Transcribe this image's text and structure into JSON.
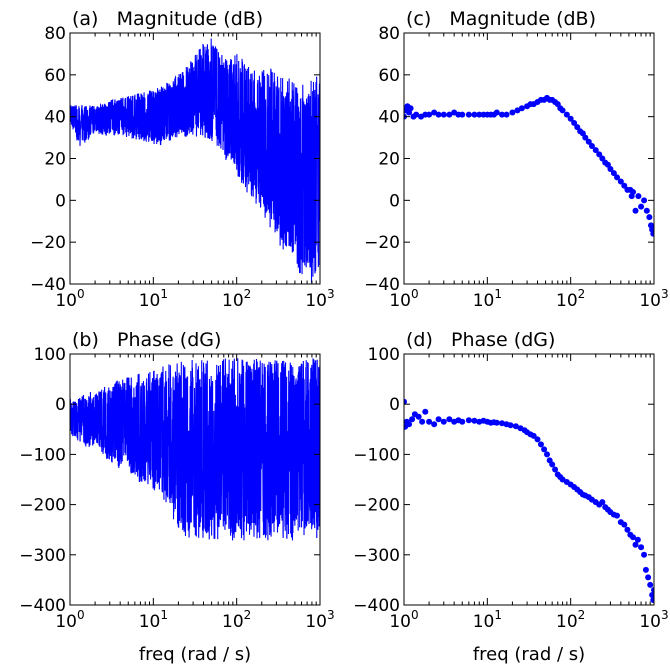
{
  "chart_data": [
    {
      "id": "a",
      "type": "line",
      "title": "(a)   Magnitude (dB)",
      "xlabel": "",
      "x_scale": "log",
      "xlim": [
        1,
        1000
      ],
      "ylim": [
        -40,
        80
      ],
      "yticks": [
        -40,
        -20,
        0,
        20,
        40,
        60,
        80
      ],
      "xticks": [
        {
          "base": "10",
          "exp": "0"
        },
        {
          "base": "10",
          "exp": "1"
        },
        {
          "base": "10",
          "exp": "2"
        },
        {
          "base": "10",
          "exp": "3"
        }
      ],
      "series_color": "#0000ff",
      "style": "dense noisy line",
      "envelope": {
        "x": [
          1,
          1.3,
          2,
          3,
          5,
          8,
          12,
          20,
          30,
          40,
          50,
          70,
          100,
          150,
          200,
          300,
          500,
          700,
          1000
        ],
        "upper": [
          46,
          46,
          45,
          48,
          50,
          52,
          54,
          60,
          68,
          76,
          78,
          68,
          70,
          64,
          65,
          62,
          58,
          55,
          62
        ],
        "lower": [
          38,
          25,
          32,
          30,
          30,
          28,
          26,
          30,
          30,
          30,
          28,
          20,
          12,
          0,
          -5,
          -20,
          -32,
          -40,
          -40
        ]
      }
    },
    {
      "id": "b",
      "type": "line",
      "title": "(b)   Phase (dG)",
      "xlabel": "freq (rad / s)",
      "x_scale": "log",
      "xlim": [
        1,
        1000
      ],
      "ylim": [
        -400,
        100
      ],
      "yticks": [
        -400,
        -300,
        -200,
        -100,
        0,
        100
      ],
      "xticks": [
        {
          "base": "10",
          "exp": "0"
        },
        {
          "base": "10",
          "exp": "1"
        },
        {
          "base": "10",
          "exp": "2"
        },
        {
          "base": "10",
          "exp": "3"
        }
      ],
      "series_color": "#0000ff",
      "style": "dense noisy line",
      "envelope": {
        "x": [
          1,
          1.5,
          2,
          3,
          4,
          6,
          10,
          15,
          20,
          30,
          50,
          60,
          80,
          100,
          200,
          500,
          1000
        ],
        "upper": [
          10,
          20,
          30,
          40,
          50,
          60,
          70,
          80,
          85,
          90,
          92,
          92,
          92,
          92,
          92,
          92,
          92
        ],
        "lower": [
          -60,
          -90,
          -80,
          -120,
          -130,
          -150,
          -170,
          -200,
          -260,
          -270,
          -270,
          -272,
          -272,
          -272,
          -272,
          -272,
          -272
        ]
      }
    },
    {
      "id": "c",
      "type": "scatter",
      "title": "(c)   Magnitude (dB)",
      "xlabel": "",
      "x_scale": "log",
      "xlim": [
        1,
        1000
      ],
      "ylim": [
        -40,
        80
      ],
      "yticks": [
        -40,
        -20,
        0,
        20,
        40,
        60,
        80
      ],
      "xticks": [
        {
          "base": "10",
          "exp": "0"
        },
        {
          "base": "10",
          "exp": "1"
        },
        {
          "base": "10",
          "exp": "2"
        },
        {
          "base": "10",
          "exp": "3"
        }
      ],
      "series_color": "#0000ff",
      "points": [
        [
          1.0,
          40
        ],
        [
          1.05,
          43
        ],
        [
          1.1,
          45
        ],
        [
          1.15,
          42
        ],
        [
          1.2,
          44
        ],
        [
          1.3,
          40
        ],
        [
          1.4,
          41
        ],
        [
          1.6,
          40
        ],
        [
          1.8,
          41
        ],
        [
          2.0,
          41
        ],
        [
          2.3,
          42
        ],
        [
          2.6,
          41
        ],
        [
          3.0,
          41
        ],
        [
          3.5,
          41
        ],
        [
          4.0,
          42
        ],
        [
          4.5,
          41
        ],
        [
          5.0,
          41
        ],
        [
          6.0,
          41
        ],
        [
          7.0,
          41
        ],
        [
          8.0,
          41
        ],
        [
          9.0,
          41
        ],
        [
          10.0,
          41
        ],
        [
          11.0,
          41
        ],
        [
          12.0,
          41
        ],
        [
          13.0,
          42
        ],
        [
          15.0,
          41
        ],
        [
          17.0,
          41
        ],
        [
          20.0,
          42
        ],
        [
          23.0,
          43
        ],
        [
          26.0,
          44
        ],
        [
          30.0,
          45
        ],
        [
          33.0,
          46
        ],
        [
          36.0,
          46
        ],
        [
          40.0,
          47
        ],
        [
          44.0,
          48
        ],
        [
          48.0,
          48
        ],
        [
          52.0,
          49
        ],
        [
          56.0,
          48
        ],
        [
          60.0,
          48
        ],
        [
          65.0,
          47
        ],
        [
          70.0,
          46
        ],
        [
          75.0,
          44
        ],
        [
          80.0,
          43
        ],
        [
          90.0,
          41
        ],
        [
          100.0,
          39
        ],
        [
          110.0,
          37
        ],
        [
          120.0,
          35
        ],
        [
          130.0,
          33
        ],
        [
          140.0,
          32
        ],
        [
          150.0,
          30
        ],
        [
          165.0,
          28
        ],
        [
          180.0,
          26
        ],
        [
          200.0,
          24
        ],
        [
          220.0,
          22
        ],
        [
          240.0,
          20
        ],
        [
          260.0,
          18
        ],
        [
          280.0,
          17
        ],
        [
          300.0,
          15
        ],
        [
          330.0,
          13
        ],
        [
          360.0,
          11
        ],
        [
          400.0,
          9
        ],
        [
          440.0,
          7
        ],
        [
          480.0,
          5
        ],
        [
          520.0,
          5
        ],
        [
          540.0,
          2
        ],
        [
          560.0,
          4
        ],
        [
          600.0,
          -5
        ],
        [
          650.0,
          2
        ],
        [
          700.0,
          -3
        ],
        [
          760.0,
          0
        ],
        [
          820.0,
          -5
        ],
        [
          880.0,
          -8
        ],
        [
          920.0,
          -12
        ],
        [
          950.0,
          -14
        ],
        [
          980.0,
          -16
        ],
        [
          1000.0,
          -15
        ]
      ]
    },
    {
      "id": "d",
      "type": "scatter",
      "title": "(d)   Phase (dG)",
      "xlabel": "freq (rad / s)",
      "x_scale": "log",
      "xlim": [
        1,
        1000
      ],
      "ylim": [
        -400,
        100
      ],
      "yticks": [
        -400,
        -300,
        -200,
        -100,
        0,
        100
      ],
      "xticks": [
        {
          "base": "10",
          "exp": "0"
        },
        {
          "base": "10",
          "exp": "1"
        },
        {
          "base": "10",
          "exp": "2"
        },
        {
          "base": "10",
          "exp": "3"
        }
      ],
      "series_color": "#0000ff",
      "points": [
        [
          1.0,
          5
        ],
        [
          1.03,
          -45
        ],
        [
          1.08,
          -35
        ],
        [
          1.15,
          -40
        ],
        [
          1.25,
          -30
        ],
        [
          1.35,
          -20
        ],
        [
          1.5,
          -25
        ],
        [
          1.65,
          -35
        ],
        [
          1.8,
          -15
        ],
        [
          2.0,
          -35
        ],
        [
          2.3,
          -40
        ],
        [
          2.6,
          -30
        ],
        [
          3.0,
          -35
        ],
        [
          3.5,
          -30
        ],
        [
          4.0,
          -35
        ],
        [
          4.5,
          -32
        ],
        [
          5.0,
          -35
        ],
        [
          6.0,
          -32
        ],
        [
          7.0,
          -33
        ],
        [
          8.0,
          -35
        ],
        [
          9.0,
          -33
        ],
        [
          10.0,
          -35
        ],
        [
          11.0,
          -37
        ],
        [
          12.0,
          -36
        ],
        [
          13.0,
          -37
        ],
        [
          15.0,
          -38
        ],
        [
          17.0,
          -40
        ],
        [
          19.0,
          -42
        ],
        [
          22.0,
          -44
        ],
        [
          25.0,
          -48
        ],
        [
          28.0,
          -52
        ],
        [
          30.0,
          -56
        ],
        [
          33.0,
          -60
        ],
        [
          36.0,
          -63
        ],
        [
          40.0,
          -70
        ],
        [
          44.0,
          -80
        ],
        [
          48.0,
          -90
        ],
        [
          52.0,
          -100
        ],
        [
          56.0,
          -112
        ],
        [
          60.0,
          -120
        ],
        [
          65.0,
          -130
        ],
        [
          70.0,
          -140
        ],
        [
          75.0,
          -145
        ],
        [
          80.0,
          -150
        ],
        [
          90.0,
          -155
        ],
        [
          100.0,
          -160
        ],
        [
          110.0,
          -165
        ],
        [
          120.0,
          -170
        ],
        [
          130.0,
          -175
        ],
        [
          140.0,
          -180
        ],
        [
          150.0,
          -182
        ],
        [
          165.0,
          -185
        ],
        [
          180.0,
          -190
        ],
        [
          200.0,
          -195
        ],
        [
          220.0,
          -200
        ],
        [
          240.0,
          -195
        ],
        [
          260.0,
          -205
        ],
        [
          280.0,
          -210
        ],
        [
          300.0,
          -215
        ],
        [
          330.0,
          -220
        ],
        [
          360.0,
          -222
        ],
        [
          400.0,
          -235
        ],
        [
          440.0,
          -240
        ],
        [
          480.0,
          -250
        ],
        [
          520.0,
          -260
        ],
        [
          560.0,
          -265
        ],
        [
          600.0,
          -280
        ],
        [
          640.0,
          -270
        ],
        [
          700.0,
          -285
        ],
        [
          760.0,
          -300
        ],
        [
          800.0,
          -330
        ],
        [
          850.0,
          -345
        ],
        [
          900.0,
          -360
        ],
        [
          950.0,
          -380
        ],
        [
          980.0,
          -390
        ],
        [
          1000.0,
          -370
        ]
      ]
    }
  ]
}
